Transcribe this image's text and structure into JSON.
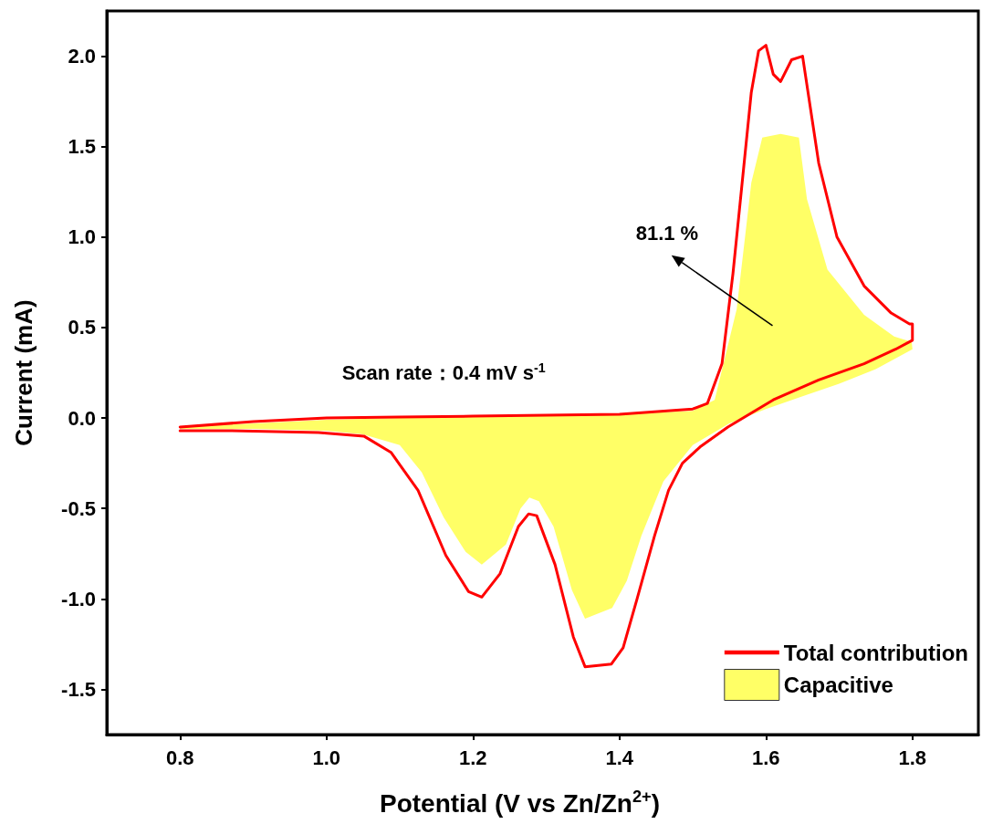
{
  "chart_data": {
    "type": "line",
    "xlabel": "Potential (V vs Zn/Zn$^{2+}$)",
    "ylabel": "Current (mA)",
    "xlim": [
      0.7,
      1.89
    ],
    "ylim": [
      -1.75,
      2.25
    ],
    "xticks": [
      {
        "value": 0.8,
        "label": "0.8"
      },
      {
        "value": 1.0,
        "label": "1.0"
      },
      {
        "value": 1.2,
        "label": "1.2"
      },
      {
        "value": 1.4,
        "label": "1.4"
      },
      {
        "value": 1.6,
        "label": "1.6"
      },
      {
        "value": 1.8,
        "label": "1.8"
      }
    ],
    "yticks": [
      {
        "value": -1.5,
        "label": "-1.5"
      },
      {
        "value": -1.0,
        "label": "-1.0"
      },
      {
        "value": -0.5,
        "label": "-0.5"
      },
      {
        "value": 0,
        "label": "0.0"
      },
      {
        "value": 0.5,
        "label": "0.5"
      },
      {
        "value": 1.0,
        "label": "1.0"
      },
      {
        "value": 1.5,
        "label": "1.5"
      },
      {
        "value": 2.0,
        "label": "2.0"
      }
    ],
    "grid": false,
    "legend": "bottom right",
    "marker": "none",
    "line_style": "solid",
    "annotations": [
      "81.1 %",
      "Scan rate：0.4 mV s$^{-1}$"
    ],
    "series": [
      {
        "name": "Total contribution",
        "color": "#ff0000",
        "x": [
          0.8,
          0.9,
          1.0,
          1.1,
          1.2,
          1.3,
          1.4,
          1.5,
          1.52,
          1.54,
          1.555,
          1.57,
          1.58,
          1.59,
          1.6,
          1.61,
          1.62,
          1.635,
          1.65,
          1.672,
          1.697,
          1.734,
          1.771,
          1.796,
          1.8,
          1.8,
          1.777,
          1.734,
          1.672,
          1.61,
          1.548,
          1.51,
          1.486,
          1.467,
          1.448,
          1.424,
          1.405,
          1.389,
          1.353,
          1.337,
          1.312,
          1.287,
          1.276,
          1.262,
          1.237,
          1.212,
          1.194,
          1.163,
          1.125,
          1.088,
          1.051,
          0.989,
          0.865,
          0.8
        ],
        "values": [
          -0.05,
          -0.02,
          0.0,
          0.005,
          0.01,
          0.015,
          0.02,
          0.05,
          0.08,
          0.3,
          0.8,
          1.4,
          1.8,
          2.03,
          2.06,
          1.9,
          1.86,
          1.98,
          2.0,
          1.41,
          1.0,
          0.73,
          0.58,
          0.52,
          0.52,
          0.43,
          0.38,
          0.3,
          0.21,
          0.1,
          -0.05,
          -0.16,
          -0.25,
          -0.4,
          -0.65,
          -1.0,
          -1.27,
          -1.36,
          -1.375,
          -1.21,
          -0.81,
          -0.54,
          -0.53,
          -0.6,
          -0.86,
          -0.99,
          -0.96,
          -0.76,
          -0.4,
          -0.19,
          -0.1,
          -0.08,
          -0.07,
          -0.07
        ]
      },
      {
        "name": "Capacitive",
        "type": "area",
        "color": "#ffff66",
        "x": [
          0.8,
          1.0,
          1.2,
          1.4,
          1.5,
          1.53,
          1.56,
          1.58,
          1.595,
          1.62,
          1.645,
          1.656,
          1.684,
          1.734,
          1.775,
          1.799,
          1.8,
          1.75,
          1.7,
          1.65,
          1.6,
          1.55,
          1.5,
          1.486,
          1.46,
          1.43,
          1.41,
          1.39,
          1.353,
          1.335,
          1.31,
          1.29,
          1.277,
          1.265,
          1.245,
          1.212,
          1.19,
          1.16,
          1.13,
          1.1,
          1.05,
          1.0,
          0.9,
          0.8
        ],
        "values": [
          -0.05,
          -0.01,
          0.01,
          0.02,
          0.04,
          0.1,
          0.6,
          1.3,
          1.55,
          1.57,
          1.55,
          1.21,
          0.82,
          0.57,
          0.45,
          0.42,
          0.38,
          0.27,
          0.19,
          0.12,
          0.05,
          -0.03,
          -0.15,
          -0.22,
          -0.35,
          -0.65,
          -0.9,
          -1.05,
          -1.11,
          -0.95,
          -0.6,
          -0.46,
          -0.44,
          -0.5,
          -0.7,
          -0.81,
          -0.74,
          -0.55,
          -0.3,
          -0.15,
          -0.09,
          -0.07,
          -0.06,
          -0.06
        ]
      }
    ]
  }
}
